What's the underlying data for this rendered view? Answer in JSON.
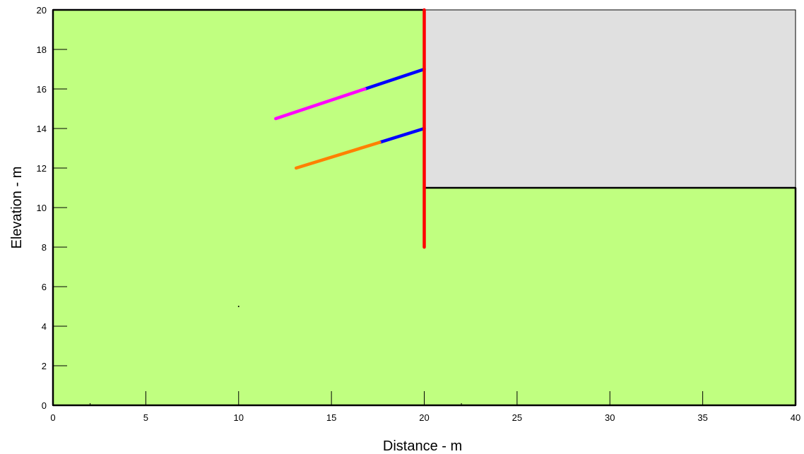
{
  "chart_data": {
    "type": "diagram",
    "xlabel": "Distance - m",
    "ylabel": "Elevation - m",
    "xlim": [
      0,
      40
    ],
    "ylim": [
      0,
      20
    ],
    "x_ticks": [
      0,
      5,
      10,
      15,
      20,
      25,
      30,
      35,
      40
    ],
    "y_ticks": [
      0,
      2,
      4,
      6,
      8,
      10,
      12,
      14,
      16,
      18,
      20
    ],
    "colors": {
      "soil": "#c0ff80",
      "excavation": "#e0e0e0",
      "wall": "#ff0000",
      "anchor_free_length": "#0000ff",
      "upper_anchor_bond": "#ff00ff",
      "lower_anchor_bond": "#ff8000",
      "outline": "#000000"
    },
    "regions": [
      {
        "name": "soil",
        "points": [
          [
            0,
            0
          ],
          [
            40,
            0
          ],
          [
            40,
            11
          ],
          [
            20,
            11
          ],
          [
            20,
            20
          ],
          [
            0,
            20
          ]
        ]
      },
      {
        "name": "excavation",
        "points": [
          [
            20,
            11
          ],
          [
            40,
            11
          ],
          [
            40,
            20
          ],
          [
            20,
            20
          ]
        ]
      }
    ],
    "wall": {
      "x": 20,
      "y_top": 20,
      "y_bottom": 8
    },
    "anchors": [
      {
        "name": "upper-anchor",
        "head": [
          20,
          17
        ],
        "bond_start": [
          16.8,
          16
        ],
        "end": [
          12,
          14.5
        ]
      },
      {
        "name": "lower-anchor",
        "head": [
          20,
          14
        ],
        "bond_start": [
          17.6,
          13.3
        ],
        "end": [
          13.1,
          12
        ]
      }
    ],
    "marker_point": [
      10,
      5
    ]
  }
}
